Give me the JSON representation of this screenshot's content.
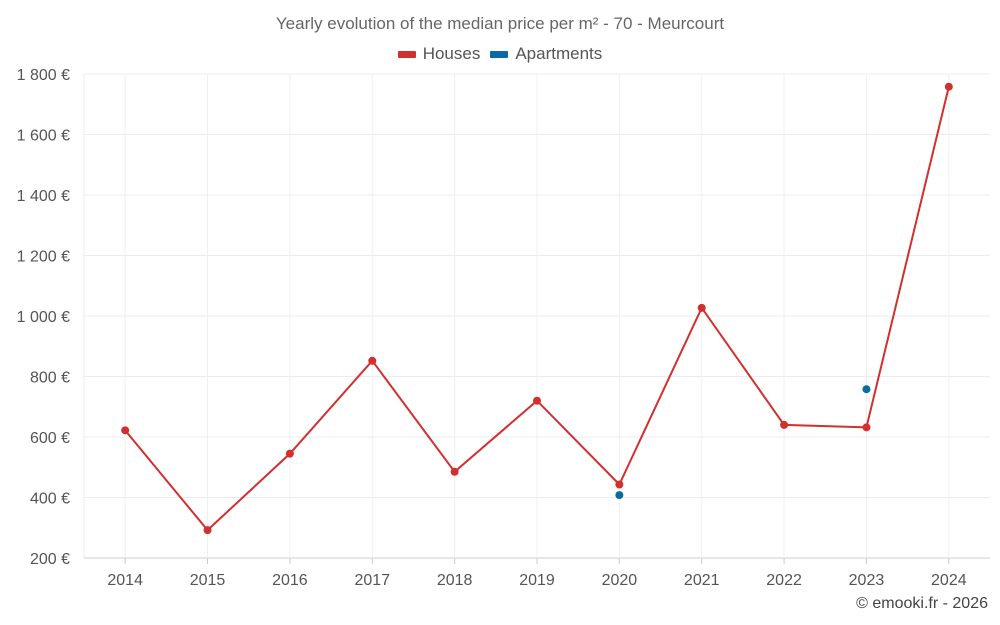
{
  "chart_data": {
    "type": "line",
    "title": "Yearly evolution of the median price per m² - 70 - Meurcourt",
    "categories": [
      "2014",
      "2015",
      "2016",
      "2017",
      "2018",
      "2019",
      "2020",
      "2021",
      "2022",
      "2023",
      "2024"
    ],
    "series": [
      {
        "name": "Houses",
        "color": "#d32f2f",
        "values": [
          622,
          292,
          545,
          852,
          485,
          720,
          443,
          1027,
          640,
          632,
          1758
        ]
      },
      {
        "name": "Apartments",
        "color": "#0b6aa2",
        "values": [
          null,
          null,
          null,
          null,
          null,
          null,
          408,
          null,
          null,
          758,
          null
        ]
      }
    ],
    "ylim": [
      200,
      1800
    ],
    "yticks": [
      200,
      400,
      600,
      800,
      1000,
      1200,
      1400,
      1600,
      1800
    ],
    "ytick_labels": [
      "200 €",
      "400 €",
      "600 €",
      "800 €",
      "1 000 €",
      "1 200 €",
      "1 400 €",
      "1 600 €",
      "1 800 €"
    ],
    "grid": true,
    "legend_position": "top-center"
  },
  "credit": "© emooki.fr - 2026"
}
